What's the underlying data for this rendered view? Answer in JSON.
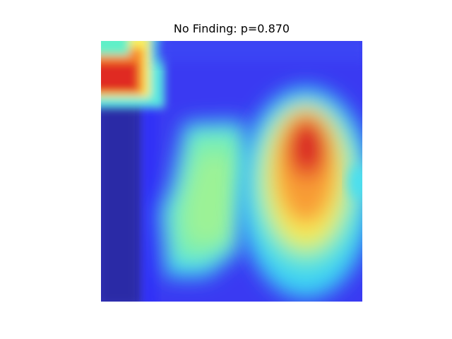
{
  "figure": {
    "title": "No Finding: p=0.870"
  },
  "heatmap": {
    "colormap": "jet",
    "colors": {
      "background": "#3c3cf0",
      "dark_edge": "#2a2aa8",
      "cyan": "#48e8f0",
      "green": "#8cf2a0",
      "yellow": "#f8f060",
      "orange": "#f89030",
      "red": "#e83030"
    },
    "axes_visible": false
  }
}
